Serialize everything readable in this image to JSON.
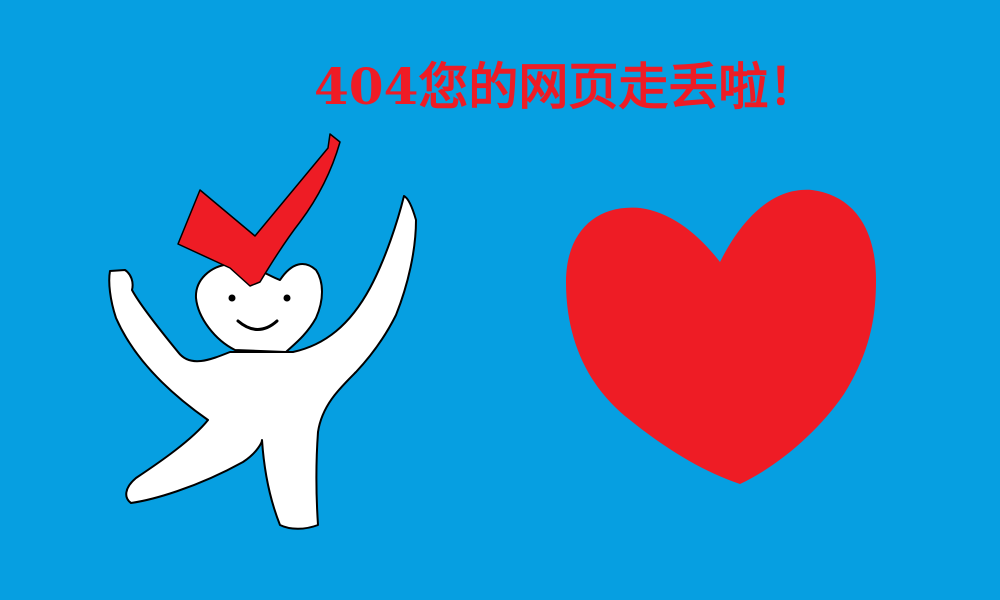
{
  "error_message": "404您的网页走丢啦！",
  "colors": {
    "background": "#069fe1",
    "accent": "#ee1c25",
    "figure_fill": "#ffffff",
    "outline": "#000000"
  },
  "illustration": {
    "figure": "stick-figure-with-checkmark-hat",
    "heart": "heart-icon"
  }
}
